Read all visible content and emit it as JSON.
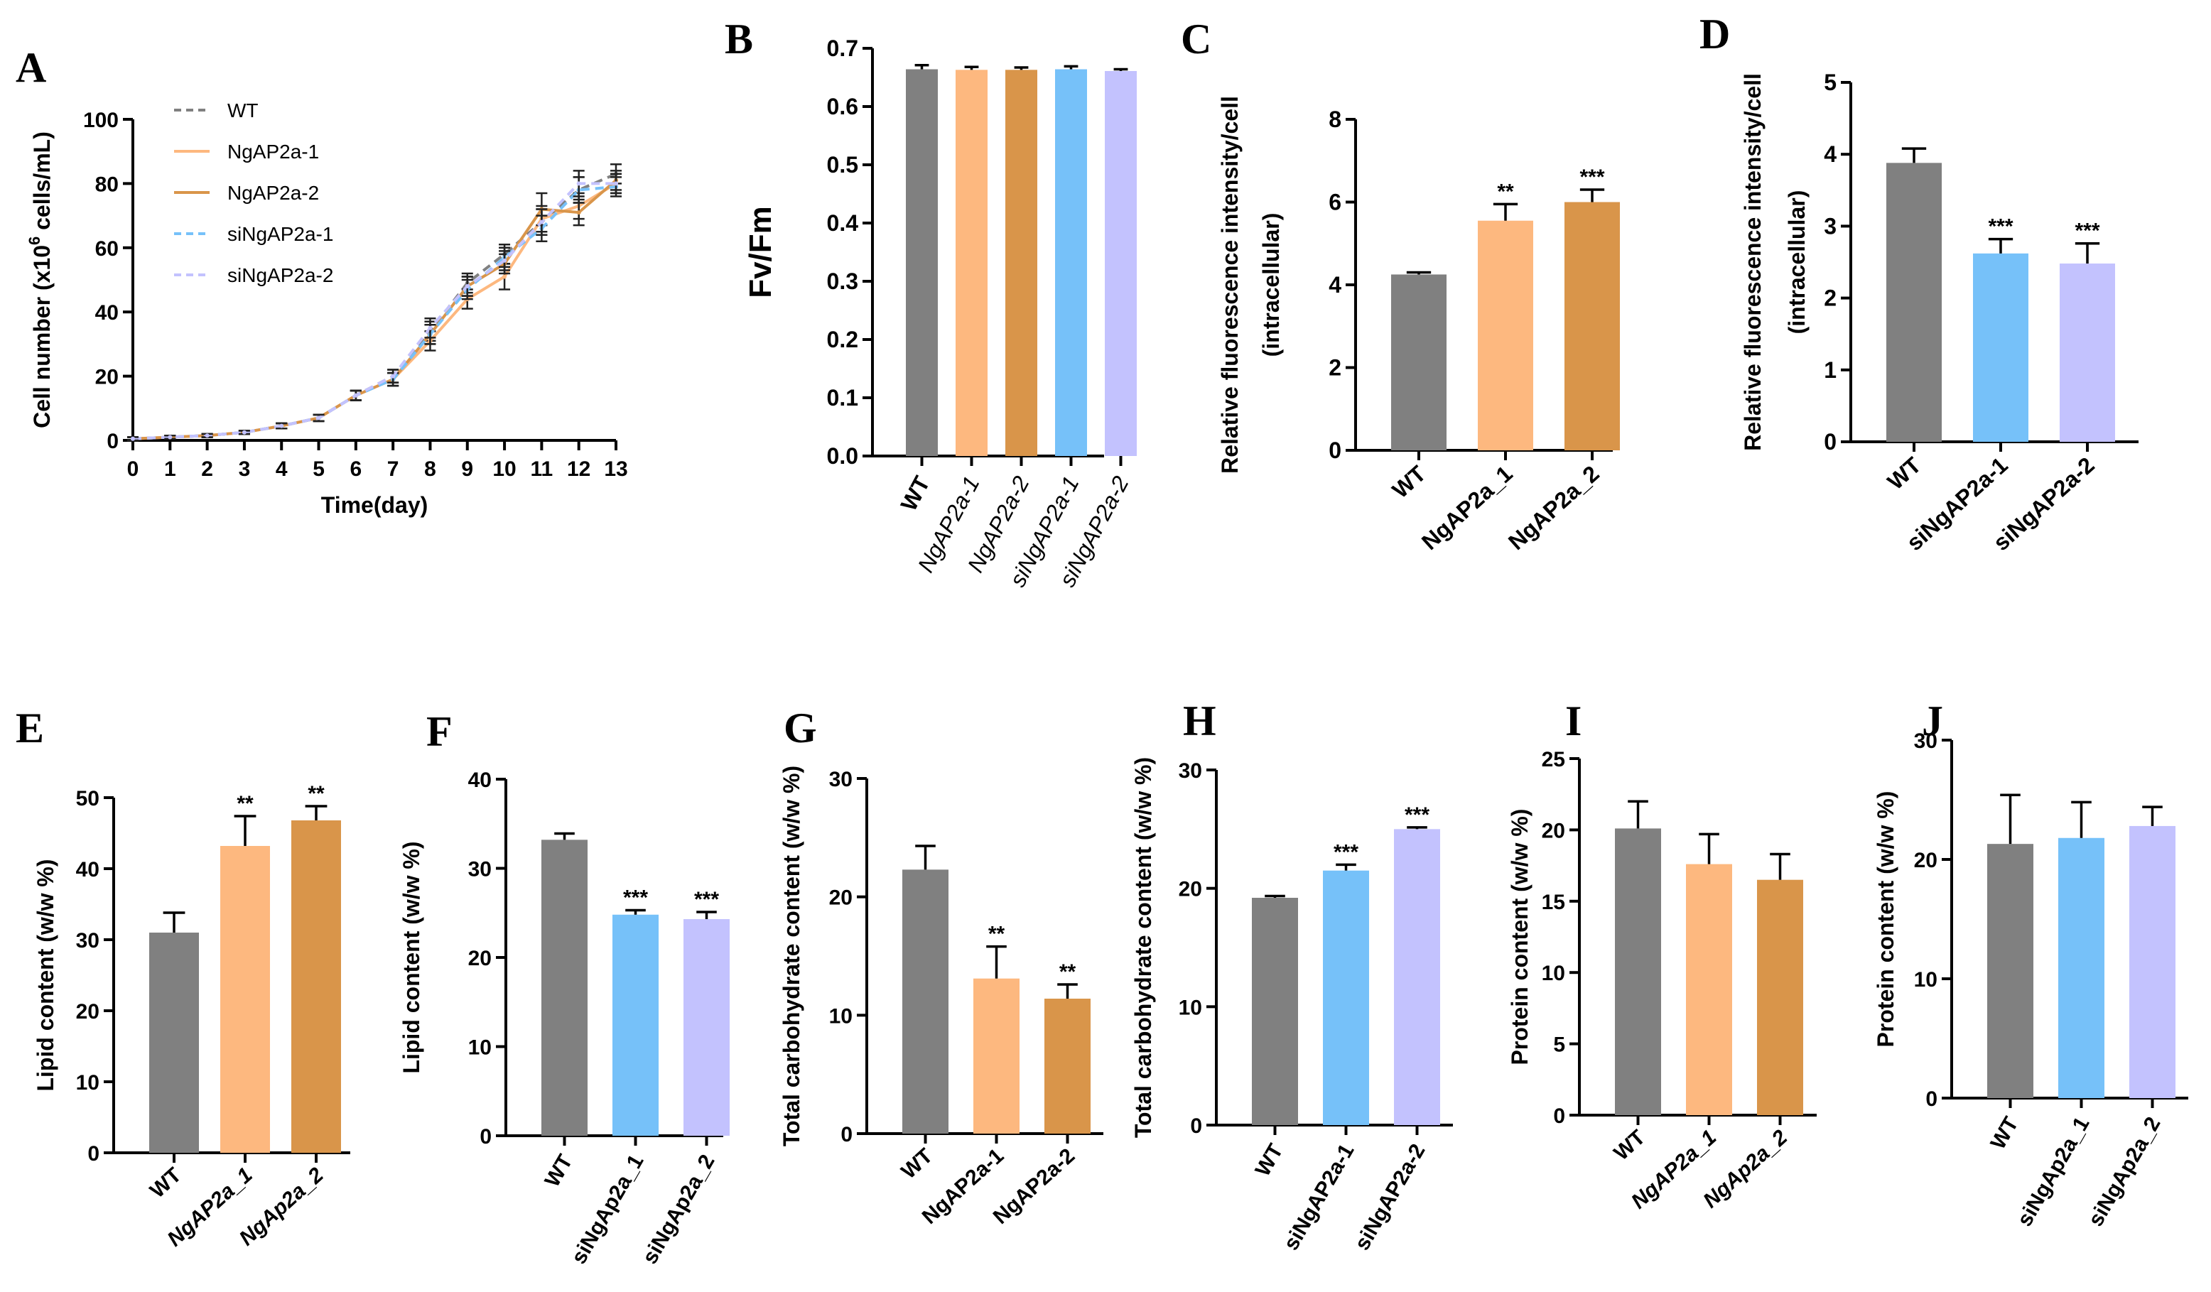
{
  "colors": {
    "wt": "#808080",
    "ngap2a_1": "#FDB87F",
    "ngap2a_2": "#D9954A",
    "sing_1": "#76C1F9",
    "sing_2": "#C3C2FE",
    "axis": "#000000"
  },
  "chart_data": [
    {
      "id": "A",
      "panel_label": "A",
      "type": "line",
      "xlabel": "Time(day)",
      "ylabel_pre": "Cell number (x10",
      "ylabel_sup": "6",
      "ylabel_post": " cells/mL)",
      "x": [
        0,
        1,
        2,
        3,
        4,
        5,
        6,
        7,
        8,
        9,
        10,
        11,
        12,
        13
      ],
      "xlim": [
        0,
        13
      ],
      "ylim": [
        0,
        100
      ],
      "yticks": [
        0,
        20,
        40,
        60,
        80,
        100
      ],
      "xticks": [
        0,
        1,
        2,
        3,
        4,
        5,
        6,
        7,
        8,
        9,
        10,
        11,
        12,
        13
      ],
      "series": [
        {
          "name": "WT",
          "color_key": "wt",
          "dash": "dashed",
          "values": [
            0.5,
            1,
            1.5,
            2.5,
            4.5,
            7,
            14,
            20,
            34,
            49,
            58,
            68,
            78,
            83
          ],
          "errors": [
            0.5,
            0.5,
            0.5,
            0.5,
            0.8,
            1,
            1.5,
            2,
            3,
            3,
            3,
            4,
            4,
            3
          ]
        },
        {
          "name": "NgAP2a-1",
          "color_key": "ngap2a_1",
          "dash": "solid",
          "values": [
            0.5,
            1,
            1.5,
            2.5,
            4.5,
            7,
            14,
            19,
            31,
            44,
            51,
            69,
            73,
            80
          ],
          "errors": [
            0.5,
            0.5,
            0.5,
            0.5,
            0.8,
            1,
            1.5,
            2,
            3,
            3,
            4,
            4,
            4,
            3
          ]
        },
        {
          "name": "NgAP2a-2",
          "color_key": "ngap2a_2",
          "dash": "solid",
          "values": [
            0.5,
            1,
            1.5,
            2.5,
            4.5,
            7,
            14,
            19,
            33,
            48,
            55,
            72,
            71,
            81
          ],
          "errors": [
            0.5,
            0.5,
            0.5,
            0.5,
            0.8,
            1,
            1.5,
            2,
            3,
            3,
            3,
            5,
            4,
            3
          ]
        },
        {
          "name": "siNgAP2a-1",
          "color_key": "sing_1",
          "dash": "dashed",
          "values": [
            0.5,
            1,
            1.5,
            2.5,
            4.5,
            7,
            14,
            19,
            33,
            47,
            57,
            66,
            78,
            79
          ],
          "errors": [
            0.5,
            0.5,
            0.5,
            0.5,
            0.8,
            1,
            1.5,
            2,
            3,
            3,
            3,
            4,
            4,
            3
          ]
        },
        {
          "name": "siNgAP2a-2",
          "color_key": "sing_2",
          "dash": "dashed",
          "values": [
            0.5,
            1,
            1.5,
            2.5,
            4.5,
            7,
            14,
            20,
            35,
            48,
            56,
            68,
            80,
            80
          ],
          "errors": [
            0.5,
            0.5,
            0.5,
            0.5,
            0.8,
            1,
            1.5,
            2,
            3,
            3,
            3,
            4,
            4,
            3
          ]
        }
      ]
    },
    {
      "id": "B",
      "panel_label": "B",
      "type": "bar",
      "ylabel": "Fv/Fm",
      "ylim": [
        0,
        0.7
      ],
      "yticks": [
        "0.0",
        "0.1",
        "0.2",
        "0.3",
        "0.4",
        "0.5",
        "0.6",
        "0.7"
      ],
      "categories": [
        "WT",
        "NgAP2a-1",
        "NgAP2a-2",
        "siNgAP2a-1",
        "siNgAP2a-2"
      ],
      "italic": [
        false,
        true,
        true,
        true,
        true
      ],
      "bold_cat": [
        true,
        false,
        false,
        false,
        false
      ],
      "values": [
        0.664,
        0.663,
        0.663,
        0.664,
        0.661
      ],
      "errors": [
        0.007,
        0.005,
        0.004,
        0.005,
        0.003
      ],
      "sig": [
        "",
        "",
        "",
        "",
        ""
      ],
      "color_keys": [
        "wt",
        "ngap2a_1",
        "ngap2a_2",
        "sing_1",
        "sing_2"
      ]
    },
    {
      "id": "C",
      "panel_label": "C",
      "type": "bar",
      "ylabel": "Relative fluorescence intensity/cell",
      "ylabel2": "(intracellular)",
      "ylim": [
        0,
        8
      ],
      "yticks": [
        "0",
        "2",
        "4",
        "6",
        "8"
      ],
      "categories": [
        "WT",
        "NgAP2a_1",
        "NgAP2a_2"
      ],
      "italic": [
        false,
        false,
        false
      ],
      "bold_cat": [
        true,
        true,
        true
      ],
      "values": [
        4.25,
        5.55,
        6.0
      ],
      "errors": [
        0.05,
        0.4,
        0.3
      ],
      "sig": [
        "",
        "**",
        "***"
      ],
      "color_keys": [
        "wt",
        "ngap2a_1",
        "ngap2a_2"
      ]
    },
    {
      "id": "D",
      "panel_label": "D",
      "type": "bar",
      "ylabel": "Relative fluorescence intensity/cell",
      "ylabel2": "(intracellular)",
      "ylim": [
        0,
        5
      ],
      "yticks": [
        "0",
        "1",
        "2",
        "3",
        "4",
        "5"
      ],
      "categories": [
        "WT",
        "siNgAP2a-1",
        "siNgAP2a-2"
      ],
      "italic": [
        false,
        false,
        false
      ],
      "bold_cat": [
        true,
        true,
        true
      ],
      "values": [
        3.88,
        2.62,
        2.48
      ],
      "errors": [
        0.2,
        0.2,
        0.28
      ],
      "sig": [
        "",
        "***",
        "***"
      ],
      "color_keys": [
        "wt",
        "sing_1",
        "sing_2"
      ]
    },
    {
      "id": "E",
      "panel_label": "E",
      "type": "bar",
      "ylabel": "Lipid content (w/w %)",
      "ylim": [
        0,
        50
      ],
      "yticks": [
        "0",
        "10",
        "20",
        "30",
        "40",
        "50"
      ],
      "categories": [
        "WT",
        "NgAP2a_1",
        "NgAp2a_2"
      ],
      "italic": [
        false,
        true,
        true
      ],
      "bold_cat": [
        true,
        true,
        true
      ],
      "values": [
        31,
        43.2,
        46.8
      ],
      "errors": [
        2.8,
        4.2,
        2
      ],
      "sig": [
        "",
        "**",
        "**"
      ],
      "color_keys": [
        "wt",
        "ngap2a_1",
        "ngap2a_2"
      ]
    },
    {
      "id": "F",
      "panel_label": "F",
      "type": "bar",
      "ylabel": "Lipid content (w/w %)",
      "ylim": [
        0,
        40
      ],
      "yticks": [
        "0",
        "10",
        "20",
        "30",
        "40"
      ],
      "categories": [
        "WT",
        "siNgAp2a_1",
        "siNgAp2a_2"
      ],
      "italic": [
        false,
        false,
        false
      ],
      "bold_cat": [
        true,
        true,
        true
      ],
      "values": [
        33.2,
        24.8,
        24.3
      ],
      "errors": [
        0.7,
        0.5,
        0.8
      ],
      "sig": [
        "",
        "***",
        "***"
      ],
      "color_keys": [
        "wt",
        "sing_1",
        "sing_2"
      ]
    },
    {
      "id": "G",
      "panel_label": "G",
      "type": "bar",
      "ylabel": "Total carbohydrate content (w/w %)",
      "ylim": [
        0,
        30
      ],
      "yticks": [
        "0",
        "10",
        "20",
        "30"
      ],
      "categories": [
        "WT",
        "NgAP2a-1",
        "NgAP2a-2"
      ],
      "italic": [
        false,
        false,
        false
      ],
      "bold_cat": [
        true,
        true,
        true
      ],
      "values": [
        22.3,
        13.1,
        11.4
      ],
      "errors": [
        2,
        2.7,
        1.2
      ],
      "sig": [
        "",
        "**",
        "**"
      ],
      "color_keys": [
        "wt",
        "ngap2a_1",
        "ngap2a_2"
      ]
    },
    {
      "id": "H",
      "panel_label": "H",
      "type": "bar",
      "ylabel": "Total carbohydrate content (w/w %)",
      "ylim": [
        0,
        30
      ],
      "yticks": [
        "0",
        "10",
        "20",
        "30"
      ],
      "categories": [
        "WT",
        "siNgAP2a-1",
        "siNgAP2a-2"
      ],
      "italic": [
        false,
        false,
        false
      ],
      "bold_cat": [
        true,
        true,
        true
      ],
      "values": [
        19.2,
        21.5,
        25
      ],
      "errors": [
        0.15,
        0.5,
        0.15
      ],
      "sig": [
        "",
        "***",
        "***"
      ],
      "color_keys": [
        "wt",
        "sing_1",
        "sing_2"
      ]
    },
    {
      "id": "I",
      "panel_label": "I",
      "type": "bar",
      "ylabel": "Protein content (w/w %)",
      "ylim": [
        0,
        25
      ],
      "yticks": [
        "0",
        "5",
        "10",
        "15",
        "20",
        "25"
      ],
      "categories": [
        "WT",
        "NgAP2a_1",
        "NgAp2a_2"
      ],
      "italic": [
        false,
        true,
        true
      ],
      "bold_cat": [
        true,
        true,
        true
      ],
      "values": [
        20.1,
        17.6,
        16.5
      ],
      "errors": [
        1.9,
        2.1,
        1.8
      ],
      "sig": [
        "",
        "",
        ""
      ],
      "color_keys": [
        "wt",
        "ngap2a_1",
        "ngap2a_2"
      ]
    },
    {
      "id": "J",
      "panel_label": "J",
      "type": "bar",
      "ylabel": "Protein content (w/w %)",
      "ylim": [
        0,
        30
      ],
      "yticks": [
        "0",
        "10",
        "20",
        "30"
      ],
      "categories": [
        "WT",
        "siNgAp2a_1",
        "siNgAp2a_2"
      ],
      "italic": [
        false,
        false,
        false
      ],
      "bold_cat": [
        true,
        true,
        true
      ],
      "values": [
        21.3,
        21.8,
        22.8
      ],
      "errors": [
        4.1,
        3.0,
        1.6
      ],
      "sig": [
        "",
        "",
        ""
      ],
      "color_keys": [
        "wt",
        "sing_1",
        "sing_2"
      ]
    }
  ]
}
